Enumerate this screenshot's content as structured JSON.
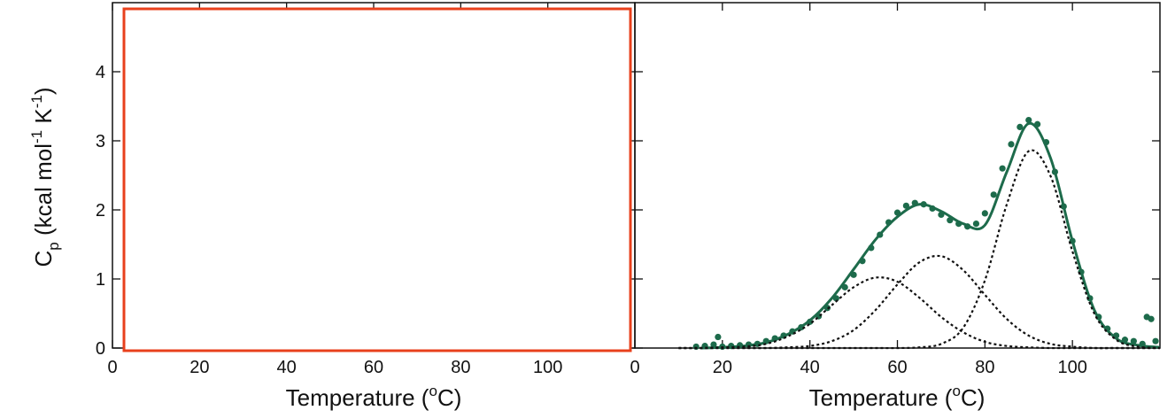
{
  "chart_data": [
    {
      "type": "scatter",
      "xlabel": [
        "Temperature (",
        "o",
        "C)"
      ],
      "ylabel": [
        "C",
        "p",
        " (kcal mol",
        "-1",
        " K",
        "-1",
        ")"
      ],
      "xlim": [
        0,
        120
      ],
      "ylim": [
        0,
        5
      ],
      "xticks": [
        0,
        20,
        40,
        60,
        80,
        100
      ],
      "yticks": [
        0,
        1,
        2,
        3,
        4
      ],
      "ytick_labels": true
    },
    {
      "type": "scatter",
      "xlabel": [
        "Temperature (",
        "o",
        "C)"
      ],
      "xlim": [
        0,
        120
      ],
      "ylim": [
        0,
        5
      ],
      "xticks": [
        0,
        20,
        40,
        60,
        80,
        100
      ],
      "yticks": [
        0,
        1,
        2,
        3,
        4
      ],
      "ytick_labels": false,
      "series": [
        {
          "type": "scatter",
          "color": "#1d6b4b",
          "x": [
            14,
            16,
            18,
            19,
            20,
            22,
            24,
            26,
            28,
            30,
            32,
            34,
            36,
            38,
            40,
            42,
            44,
            46,
            48,
            50,
            52,
            54,
            56,
            58,
            60,
            62,
            64,
            66,
            68,
            70,
            72,
            74,
            76,
            78,
            80,
            82,
            84,
            86,
            88,
            90,
            92,
            94,
            96,
            98,
            100,
            102,
            104,
            106,
            108,
            110,
            112,
            114,
            116,
            117,
            118,
            119
          ],
          "values": [
            0.02,
            0.03,
            0.05,
            0.16,
            0.02,
            0.03,
            0.04,
            0.05,
            0.06,
            0.1,
            0.14,
            0.18,
            0.24,
            0.3,
            0.38,
            0.46,
            0.58,
            0.72,
            0.88,
            1.06,
            1.26,
            1.45,
            1.64,
            1.82,
            1.96,
            2.06,
            2.1,
            2.08,
            2.02,
            1.93,
            1.85,
            1.8,
            1.76,
            1.8,
            1.95,
            2.22,
            2.6,
            2.95,
            3.2,
            3.3,
            3.24,
            2.98,
            2.55,
            2.05,
            1.55,
            1.1,
            0.72,
            0.45,
            0.28,
            0.18,
            0.12,
            0.1,
            0.06,
            0.45,
            0.42,
            0.1
          ]
        },
        {
          "type": "line",
          "color": "#1d6b4b",
          "dash": "solid",
          "x": [
            15,
            20,
            25,
            30,
            35,
            40,
            45,
            50,
            55,
            60,
            65,
            70,
            75,
            80,
            85,
            90,
            95,
            100,
            105,
            110,
            115,
            120
          ],
          "values": [
            0,
            0.01,
            0.03,
            0.08,
            0.2,
            0.4,
            0.72,
            1.14,
            1.57,
            1.9,
            2.08,
            1.98,
            1.8,
            1.78,
            2.55,
            3.25,
            2.75,
            1.55,
            0.55,
            0.14,
            0.04,
            0.01
          ]
        },
        {
          "type": "line",
          "color": "#111111",
          "dash": "dotted",
          "x": [
            10,
            15,
            20,
            25,
            30,
            35,
            40,
            45,
            50,
            55,
            60,
            65,
            70,
            75,
            80,
            85,
            90,
            95,
            100,
            105,
            110,
            115,
            120
          ],
          "values": [
            0,
            0,
            0.01,
            0.02,
            0.06,
            0.17,
            0.35,
            0.62,
            0.88,
            1.02,
            0.96,
            0.73,
            0.45,
            0.23,
            0.09,
            0.03,
            0.01,
            0,
            0,
            0,
            0,
            0,
            0
          ]
        },
        {
          "type": "line",
          "color": "#111111",
          "dash": "dotted",
          "x": [
            10,
            15,
            20,
            25,
            30,
            35,
            40,
            45,
            50,
            55,
            60,
            65,
            70,
            75,
            80,
            85,
            90,
            95,
            100,
            105,
            110,
            115,
            120
          ],
          "values": [
            0,
            0,
            0,
            0,
            0,
            0.01,
            0.03,
            0.1,
            0.26,
            0.55,
            0.92,
            1.24,
            1.33,
            1.13,
            0.77,
            0.42,
            0.18,
            0.06,
            0.02,
            0,
            0,
            0,
            0
          ]
        },
        {
          "type": "line",
          "color": "#111111",
          "dash": "dotted",
          "x": [
            10,
            15,
            20,
            25,
            30,
            35,
            40,
            45,
            50,
            55,
            60,
            65,
            70,
            75,
            80,
            85,
            90,
            95,
            100,
            105,
            110,
            115,
            120
          ],
          "values": [
            0,
            0,
            0,
            0,
            0,
            0,
            0,
            0,
            0,
            0,
            0,
            0.01,
            0.06,
            0.29,
            0.98,
            2.08,
            2.85,
            2.49,
            1.4,
            0.5,
            0.12,
            0.02,
            0
          ]
        }
      ]
    }
  ]
}
